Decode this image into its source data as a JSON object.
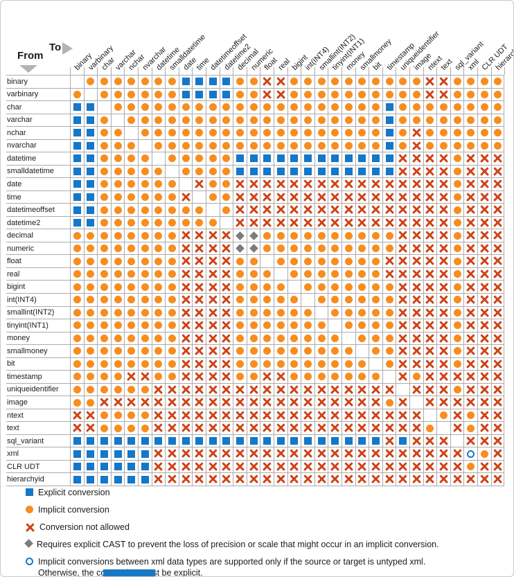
{
  "header": {
    "from_label": "From",
    "to_label": "To"
  },
  "colors": {
    "explicit_blue": "#1577c8",
    "implicit_orange": "#f78d1e",
    "not_allowed_red": "#ce4317",
    "cast_diamond_gray": "#7c7c7c",
    "grid_line": "#ababab",
    "arrow_gray": "#b3b3b3",
    "footer_bar_blue": "#1878c8"
  },
  "chart_data": {
    "type": "table",
    "xlabel": "To",
    "ylabel": "From",
    "symbols": {
      "E": "Explicit conversion",
      "I": "Implicit conversion",
      "X": "Conversion not allowed",
      "D": "Requires explicit CAST",
      "C": "Implicit only if source or target is untyped xml",
      "": "same type (blank diagonal)"
    },
    "categories": [
      "binary",
      "varbinary",
      "char",
      "varchar",
      "nchar",
      "nvarchar",
      "datetime",
      "smalldatetime",
      "date",
      "time",
      "datetimeoffset",
      "datetime2",
      "decimal",
      "numeric",
      "float",
      "real",
      "bigint",
      "int(INT4)",
      "smallint(INT2)",
      "tinyint(INT1)",
      "money",
      "smallmoney",
      "bit",
      "timestamp",
      "uniqueidentifier",
      "image",
      "ntext",
      "text",
      "sql_variant",
      "xml",
      "CLR UDT",
      "hierarchyid"
    ],
    "rows": [
      "binary",
      "varbinary",
      "char",
      "varchar",
      "nchar",
      "nvarchar",
      "datetime",
      "smalldatetime",
      "date",
      "time",
      "datetimeoffset",
      "datetime2",
      "decimal",
      "numeric",
      "float",
      "real",
      "bigint",
      "int(INT4)",
      "smallint(INT2)",
      "tinyint(INT1)",
      "money",
      "smallmoney",
      "bit",
      "timestamp",
      "uniqueidentifier",
      "image",
      "ntext",
      "text",
      "sql_variant",
      "xml",
      "CLR UDT",
      "hierarchyid"
    ],
    "matrix": [
      [
        "",
        "I",
        "I",
        "I",
        "I",
        "I",
        "I",
        "I",
        "E",
        "E",
        "E",
        "E",
        "I",
        "I",
        "X",
        "X",
        "I",
        "I",
        "I",
        "I",
        "I",
        "I",
        "I",
        "I",
        "I",
        "I",
        "X",
        "X",
        "I",
        "I",
        "I",
        "I"
      ],
      [
        "I",
        "",
        "I",
        "I",
        "I",
        "I",
        "I",
        "I",
        "E",
        "E",
        "E",
        "E",
        "I",
        "I",
        "X",
        "X",
        "I",
        "I",
        "I",
        "I",
        "I",
        "I",
        "I",
        "I",
        "I",
        "I",
        "X",
        "X",
        "I",
        "I",
        "I",
        "I"
      ],
      [
        "E",
        "E",
        "",
        "I",
        "I",
        "I",
        "I",
        "I",
        "I",
        "I",
        "I",
        "I",
        "I",
        "I",
        "I",
        "I",
        "I",
        "I",
        "I",
        "I",
        "I",
        "I",
        "I",
        "E",
        "I",
        "I",
        "I",
        "I",
        "I",
        "I",
        "I",
        "I"
      ],
      [
        "E",
        "E",
        "I",
        "",
        "I",
        "I",
        "I",
        "I",
        "I",
        "I",
        "I",
        "I",
        "I",
        "I",
        "I",
        "I",
        "I",
        "I",
        "I",
        "I",
        "I",
        "I",
        "I",
        "E",
        "I",
        "I",
        "I",
        "I",
        "I",
        "I",
        "I",
        "I"
      ],
      [
        "E",
        "E",
        "I",
        "I",
        "",
        "I",
        "I",
        "I",
        "I",
        "I",
        "I",
        "I",
        "I",
        "I",
        "I",
        "I",
        "I",
        "I",
        "I",
        "I",
        "I",
        "I",
        "I",
        "E",
        "I",
        "X",
        "I",
        "I",
        "I",
        "I",
        "I",
        "I"
      ],
      [
        "E",
        "E",
        "I",
        "I",
        "I",
        "",
        "I",
        "I",
        "I",
        "I",
        "I",
        "I",
        "I",
        "I",
        "I",
        "I",
        "I",
        "I",
        "I",
        "I",
        "I",
        "I",
        "I",
        "E",
        "I",
        "X",
        "I",
        "I",
        "I",
        "I",
        "I",
        "I"
      ],
      [
        "E",
        "E",
        "I",
        "I",
        "I",
        "I",
        "",
        "I",
        "I",
        "I",
        "I",
        "I",
        "E",
        "E",
        "E",
        "E",
        "E",
        "E",
        "E",
        "E",
        "E",
        "E",
        "E",
        "E",
        "X",
        "X",
        "X",
        "X",
        "I",
        "X",
        "X",
        "X"
      ],
      [
        "E",
        "E",
        "I",
        "I",
        "I",
        "I",
        "I",
        "",
        "I",
        "I",
        "I",
        "I",
        "E",
        "E",
        "E",
        "E",
        "E",
        "E",
        "E",
        "E",
        "E",
        "E",
        "E",
        "E",
        "X",
        "X",
        "X",
        "X",
        "I",
        "X",
        "X",
        "X"
      ],
      [
        "E",
        "E",
        "I",
        "I",
        "I",
        "I",
        "I",
        "I",
        "",
        "X",
        "I",
        "I",
        "X",
        "X",
        "X",
        "X",
        "X",
        "X",
        "X",
        "X",
        "X",
        "X",
        "X",
        "X",
        "X",
        "X",
        "X",
        "X",
        "I",
        "X",
        "X",
        "X"
      ],
      [
        "E",
        "E",
        "I",
        "I",
        "I",
        "I",
        "I",
        "I",
        "X",
        "",
        "I",
        "I",
        "X",
        "X",
        "X",
        "X",
        "X",
        "X",
        "X",
        "X",
        "X",
        "X",
        "X",
        "X",
        "X",
        "X",
        "X",
        "X",
        "I",
        "X",
        "X",
        "X"
      ],
      [
        "E",
        "E",
        "I",
        "I",
        "I",
        "I",
        "I",
        "I",
        "I",
        "I",
        "",
        "I",
        "X",
        "X",
        "X",
        "X",
        "X",
        "X",
        "X",
        "X",
        "X",
        "X",
        "X",
        "X",
        "X",
        "X",
        "X",
        "X",
        "I",
        "X",
        "X",
        "X"
      ],
      [
        "E",
        "E",
        "I",
        "I",
        "I",
        "I",
        "I",
        "I",
        "I",
        "I",
        "I",
        "",
        "X",
        "X",
        "X",
        "X",
        "X",
        "X",
        "X",
        "X",
        "X",
        "X",
        "X",
        "X",
        "X",
        "X",
        "X",
        "X",
        "I",
        "X",
        "X",
        "X"
      ],
      [
        "I",
        "I",
        "I",
        "I",
        "I",
        "I",
        "I",
        "I",
        "X",
        "X",
        "X",
        "X",
        "D",
        "D",
        "I",
        "I",
        "I",
        "I",
        "I",
        "I",
        "I",
        "I",
        "I",
        "I",
        "X",
        "X",
        "X",
        "X",
        "I",
        "X",
        "X",
        "X"
      ],
      [
        "I",
        "I",
        "I",
        "I",
        "I",
        "I",
        "I",
        "I",
        "X",
        "X",
        "X",
        "X",
        "D",
        "D",
        "I",
        "I",
        "I",
        "I",
        "I",
        "I",
        "I",
        "I",
        "I",
        "I",
        "X",
        "X",
        "X",
        "X",
        "I",
        "X",
        "X",
        "X"
      ],
      [
        "I",
        "I",
        "I",
        "I",
        "I",
        "I",
        "I",
        "I",
        "X",
        "X",
        "X",
        "X",
        "I",
        "I",
        "",
        "I",
        "I",
        "I",
        "I",
        "I",
        "I",
        "I",
        "I",
        "X",
        "X",
        "X",
        "X",
        "X",
        "I",
        "X",
        "X",
        "X"
      ],
      [
        "I",
        "I",
        "I",
        "I",
        "I",
        "I",
        "I",
        "I",
        "X",
        "X",
        "X",
        "X",
        "I",
        "I",
        "I",
        "",
        "I",
        "I",
        "I",
        "I",
        "I",
        "I",
        "I",
        "X",
        "X",
        "X",
        "X",
        "X",
        "I",
        "X",
        "X",
        "X"
      ],
      [
        "I",
        "I",
        "I",
        "I",
        "I",
        "I",
        "I",
        "I",
        "X",
        "X",
        "X",
        "X",
        "I",
        "I",
        "I",
        "I",
        "",
        "I",
        "I",
        "I",
        "I",
        "I",
        "I",
        "I",
        "X",
        "X",
        "X",
        "X",
        "I",
        "X",
        "X",
        "X"
      ],
      [
        "I",
        "I",
        "I",
        "I",
        "I",
        "I",
        "I",
        "I",
        "X",
        "X",
        "X",
        "X",
        "I",
        "I",
        "I",
        "I",
        "I",
        "",
        "I",
        "I",
        "I",
        "I",
        "I",
        "I",
        "X",
        "X",
        "X",
        "X",
        "I",
        "X",
        "X",
        "X"
      ],
      [
        "I",
        "I",
        "I",
        "I",
        "I",
        "I",
        "I",
        "I",
        "X",
        "X",
        "X",
        "X",
        "I",
        "I",
        "I",
        "I",
        "I",
        "I",
        "",
        "I",
        "I",
        "I",
        "I",
        "I",
        "X",
        "X",
        "X",
        "X",
        "I",
        "X",
        "X",
        "X"
      ],
      [
        "I",
        "I",
        "I",
        "I",
        "I",
        "I",
        "I",
        "I",
        "X",
        "X",
        "X",
        "X",
        "I",
        "I",
        "I",
        "I",
        "I",
        "I",
        "I",
        "",
        "I",
        "I",
        "I",
        "I",
        "X",
        "X",
        "X",
        "X",
        "I",
        "X",
        "X",
        "X"
      ],
      [
        "I",
        "I",
        "I",
        "I",
        "I",
        "I",
        "I",
        "I",
        "X",
        "X",
        "X",
        "X",
        "I",
        "I",
        "I",
        "I",
        "I",
        "I",
        "I",
        "I",
        "",
        "I",
        "I",
        "I",
        "X",
        "X",
        "X",
        "X",
        "I",
        "X",
        "X",
        "X"
      ],
      [
        "I",
        "I",
        "I",
        "I",
        "I",
        "I",
        "I",
        "I",
        "X",
        "X",
        "X",
        "X",
        "I",
        "I",
        "I",
        "I",
        "I",
        "I",
        "I",
        "I",
        "I",
        "",
        "I",
        "I",
        "X",
        "X",
        "X",
        "X",
        "I",
        "X",
        "X",
        "X"
      ],
      [
        "I",
        "I",
        "I",
        "I",
        "I",
        "I",
        "I",
        "I",
        "X",
        "X",
        "X",
        "X",
        "I",
        "I",
        "I",
        "I",
        "I",
        "I",
        "I",
        "I",
        "I",
        "I",
        "",
        "I",
        "X",
        "X",
        "X",
        "X",
        "I",
        "X",
        "X",
        "X"
      ],
      [
        "I",
        "I",
        "I",
        "I",
        "X",
        "X",
        "I",
        "I",
        "X",
        "X",
        "X",
        "X",
        "I",
        "I",
        "X",
        "X",
        "I",
        "I",
        "I",
        "I",
        "I",
        "I",
        "I",
        "",
        "X",
        "I",
        "X",
        "X",
        "X",
        "X",
        "X",
        "X"
      ],
      [
        "I",
        "I",
        "I",
        "I",
        "I",
        "I",
        "X",
        "X",
        "X",
        "X",
        "X",
        "X",
        "X",
        "X",
        "X",
        "X",
        "X",
        "X",
        "X",
        "X",
        "X",
        "X",
        "X",
        "X",
        "",
        "X",
        "X",
        "X",
        "I",
        "X",
        "X",
        "X"
      ],
      [
        "I",
        "I",
        "X",
        "X",
        "X",
        "X",
        "X",
        "X",
        "X",
        "X",
        "X",
        "X",
        "X",
        "X",
        "X",
        "X",
        "X",
        "X",
        "X",
        "X",
        "X",
        "X",
        "X",
        "I",
        "X",
        "",
        "X",
        "X",
        "X",
        "X",
        "X",
        "X"
      ],
      [
        "X",
        "X",
        "I",
        "I",
        "I",
        "I",
        "X",
        "X",
        "X",
        "X",
        "X",
        "X",
        "X",
        "X",
        "X",
        "X",
        "X",
        "X",
        "X",
        "X",
        "X",
        "X",
        "X",
        "X",
        "X",
        "X",
        "",
        "I",
        "X",
        "I",
        "X",
        "X"
      ],
      [
        "X",
        "X",
        "I",
        "I",
        "I",
        "I",
        "X",
        "X",
        "X",
        "X",
        "X",
        "X",
        "X",
        "X",
        "X",
        "X",
        "X",
        "X",
        "X",
        "X",
        "X",
        "X",
        "X",
        "X",
        "X",
        "X",
        "I",
        "",
        "X",
        "I",
        "X",
        "X"
      ],
      [
        "E",
        "E",
        "E",
        "E",
        "E",
        "E",
        "E",
        "E",
        "E",
        "E",
        "E",
        "E",
        "E",
        "E",
        "E",
        "E",
        "E",
        "E",
        "E",
        "E",
        "E",
        "E",
        "E",
        "X",
        "E",
        "X",
        "X",
        "X",
        "",
        "X",
        "X",
        "X"
      ],
      [
        "E",
        "E",
        "E",
        "E",
        "E",
        "E",
        "X",
        "X",
        "X",
        "X",
        "X",
        "X",
        "X",
        "X",
        "X",
        "X",
        "X",
        "X",
        "X",
        "X",
        "X",
        "X",
        "X",
        "X",
        "X",
        "X",
        "X",
        "X",
        "X",
        "C",
        "I",
        "X"
      ],
      [
        "E",
        "E",
        "E",
        "E",
        "E",
        "E",
        "X",
        "X",
        "X",
        "X",
        "X",
        "X",
        "X",
        "X",
        "X",
        "X",
        "X",
        "X",
        "X",
        "X",
        "X",
        "X",
        "X",
        "X",
        "X",
        "X",
        "X",
        "X",
        "X",
        "I",
        "X",
        "X"
      ],
      [
        "E",
        "E",
        "E",
        "E",
        "E",
        "E",
        "X",
        "X",
        "X",
        "X",
        "X",
        "X",
        "X",
        "X",
        "X",
        "X",
        "X",
        "X",
        "X",
        "X",
        "X",
        "X",
        "X",
        "X",
        "X",
        "X",
        "X",
        "X",
        "X",
        "X",
        "X",
        "X"
      ]
    ],
    "legend": [
      {
        "symbol": "E",
        "label": "Explicit conversion"
      },
      {
        "symbol": "I",
        "label": "Implicit conversion"
      },
      {
        "symbol": "X",
        "label": "Conversion not allowed"
      },
      {
        "symbol": "D",
        "label": "Requires explicit CAST to prevent the loss of precision or scale that might occur in an implicit conversion."
      },
      {
        "symbol": "C",
        "label": "Implicit conversions between xml data types are supported only if the source or target is untyped xml.",
        "label2": "Otherwise, the conversion must be explicit."
      }
    ]
  }
}
